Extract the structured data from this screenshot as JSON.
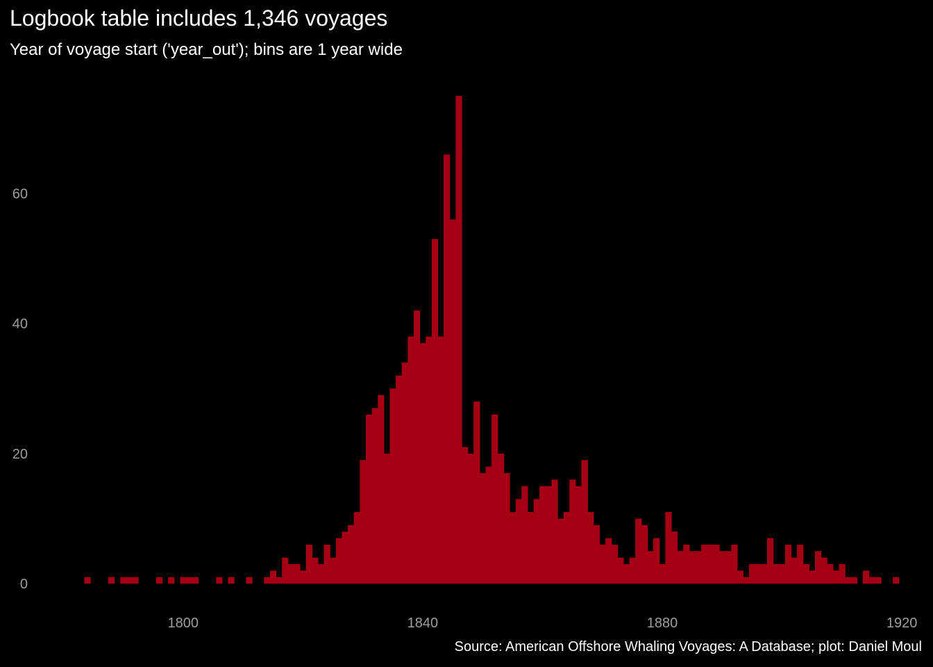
{
  "chart_data": {
    "type": "bar",
    "title": "Logbook table includes 1,346 voyages",
    "subtitle": "Year of voyage start ('year_out'); bins are 1 year wide",
    "caption": "Source: American Offshore Whaling Voyages: A Database; plot: Daniel Moul",
    "xlabel": "",
    "ylabel": "",
    "bin_width": 1,
    "bar_color": "#a50014",
    "background": "#000000",
    "tick_color": "#9e9e9e",
    "grid": false,
    "xlim": [
      1778,
      1923
    ],
    "ylim": [
      0,
      78
    ],
    "x_ticks": [
      1800,
      1840,
      1880,
      1920
    ],
    "x_tick_labels": [
      "1800",
      "1840",
      "1880",
      "1920"
    ],
    "y_ticks": [
      0,
      20,
      40,
      60
    ],
    "y_tick_labels": [
      "0",
      "20",
      "40",
      "60"
    ],
    "x": [
      1784,
      1788,
      1790,
      1791,
      1792,
      1796,
      1798,
      1800,
      1801,
      1802,
      1806,
      1808,
      1811,
      1814,
      1815,
      1816,
      1817,
      1818,
      1819,
      1820,
      1821,
      1822,
      1823,
      1824,
      1825,
      1826,
      1827,
      1828,
      1829,
      1830,
      1831,
      1832,
      1833,
      1834,
      1835,
      1836,
      1837,
      1838,
      1839,
      1840,
      1841,
      1842,
      1843,
      1844,
      1845,
      1846,
      1847,
      1848,
      1849,
      1850,
      1851,
      1852,
      1853,
      1854,
      1855,
      1856,
      1857,
      1858,
      1859,
      1860,
      1861,
      1862,
      1863,
      1864,
      1865,
      1866,
      1867,
      1868,
      1869,
      1870,
      1871,
      1872,
      1873,
      1874,
      1875,
      1876,
      1877,
      1878,
      1879,
      1880,
      1881,
      1882,
      1883,
      1884,
      1885,
      1886,
      1887,
      1888,
      1889,
      1890,
      1891,
      1892,
      1893,
      1894,
      1895,
      1896,
      1897,
      1898,
      1899,
      1900,
      1901,
      1902,
      1903,
      1904,
      1905,
      1906,
      1907,
      1908,
      1909,
      1910,
      1911,
      1912,
      1914,
      1915,
      1916,
      1919
    ],
    "values": [
      1,
      1,
      1,
      1,
      1,
      1,
      1,
      1,
      1,
      1,
      1,
      1,
      1,
      1,
      2,
      1,
      4,
      3,
      3,
      2,
      6,
      4,
      3,
      6,
      4,
      7,
      8,
      9,
      11,
      19,
      26,
      27,
      29,
      20,
      30,
      32,
      34,
      38,
      42,
      37,
      38,
      53,
      38,
      66,
      56,
      75,
      21,
      20,
      28,
      17,
      18,
      26,
      20,
      17,
      11,
      13,
      15,
      11,
      13,
      15,
      15,
      16,
      10,
      11,
      16,
      15,
      19,
      11,
      9,
      6,
      7,
      6,
      4,
      3,
      4,
      10,
      9,
      5,
      7,
      3,
      11,
      8,
      5,
      6,
      5,
      5,
      6,
      6,
      6,
      5,
      5,
      6,
      2,
      1,
      3,
      3,
      3,
      7,
      3,
      3,
      6,
      4,
      6,
      3,
      2,
      5,
      4,
      3,
      2,
      3,
      1,
      1,
      2,
      1,
      1,
      1
    ]
  }
}
